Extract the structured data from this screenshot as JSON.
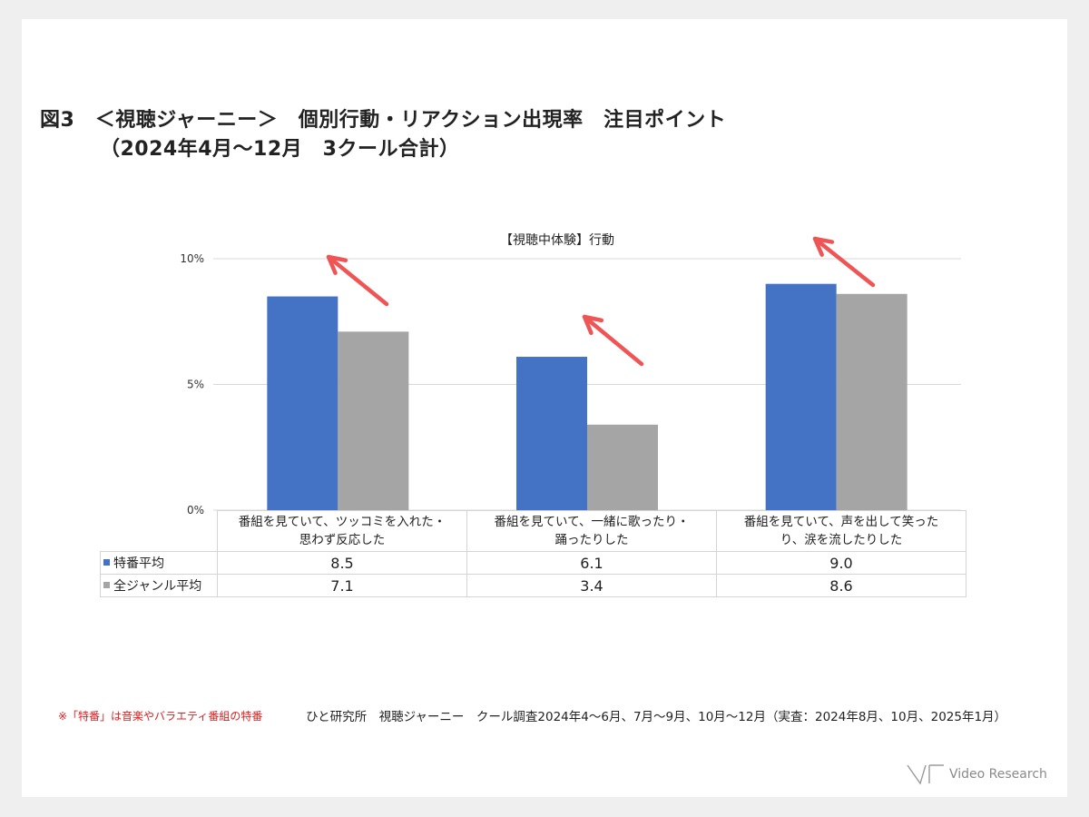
{
  "title": {
    "line1": "図3　＜視聴ジャーニー＞　個別行動・リアクション出現率　注目ポイント",
    "line2": "（2024年4月～12月　3クール合計）"
  },
  "chart_data": {
    "type": "bar",
    "title": "【視聴中体験】行動",
    "categories": [
      "番組を見ていて、ツッコミを入れた・思わず反応した",
      "番組を見ていて、一緒に歌ったり・踊ったりした",
      "番組を見ていて、声を出して笑ったり、涙を流したりした"
    ],
    "category_lines": [
      [
        "番組を見ていて、ツッコミを入れた・",
        "思わず反応した"
      ],
      [
        "番組を見ていて、一緒に歌ったり・",
        "踊ったりした"
      ],
      [
        "番組を見ていて、声を出して笑った",
        "り、涙を流したりした"
      ]
    ],
    "series": [
      {
        "name": "特番平均",
        "values": [
          8.5,
          6.1,
          9.0
        ],
        "labels": [
          "8.5",
          "6.1",
          "9.0"
        ],
        "color": "#4472c4"
      },
      {
        "name": "全ジャンル平均",
        "values": [
          7.1,
          3.4,
          8.6
        ],
        "labels": [
          "7.1",
          "3.4",
          "8.6"
        ],
        "color": "#a5a5a5"
      }
    ],
    "ylim": [
      0,
      10
    ],
    "yticks": [
      0,
      5,
      10
    ],
    "ytick_labels": [
      "0%",
      "5%",
      "10%"
    ],
    "grid": true,
    "legend": "data-table",
    "annotations": [
      "up-left arrow above each category"
    ],
    "arrow_color": "#f05555"
  },
  "footnotes": {
    "note": "※「特番」は音楽やバラエティ番組の特番",
    "source": "ひと研究所　視聴ジャーニー　クール調査2024年4～6月、7月～9月、10月～12月（実査：2024年8月、10月、2025年1月）"
  },
  "brand": {
    "name": "Video Research"
  }
}
